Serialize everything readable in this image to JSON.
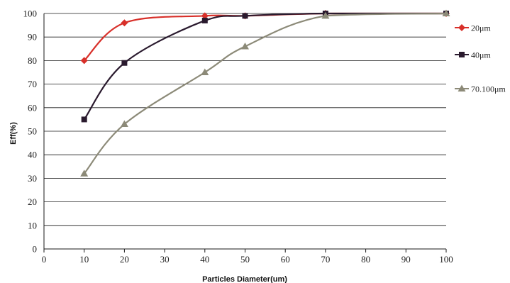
{
  "chart_data": {
    "type": "line",
    "title": "",
    "xlabel": "Particles Diameter(um)",
    "ylabel": "Eff(%)",
    "xlim": [
      0,
      100
    ],
    "ylim": [
      0,
      100
    ],
    "xticks": [
      0,
      10,
      20,
      30,
      40,
      50,
      60,
      70,
      80,
      90,
      100
    ],
    "yticks": [
      0,
      10,
      20,
      30,
      40,
      50,
      60,
      70,
      80,
      90,
      100
    ],
    "grid": "horizontal",
    "legend_position": "right",
    "series": [
      {
        "name": "20μm",
        "color": "#d8302a",
        "marker": "diamond",
        "points": [
          [
            10,
            80
          ],
          [
            20,
            96
          ],
          [
            40,
            99
          ],
          [
            50,
            99
          ],
          [
            70,
            100
          ],
          [
            100,
            100
          ]
        ]
      },
      {
        "name": "40μm",
        "color": "#2a1a2e",
        "marker": "square",
        "points": [
          [
            10,
            55
          ],
          [
            20,
            79
          ],
          [
            40,
            97
          ],
          [
            50,
            99
          ],
          [
            70,
            100
          ],
          [
            100,
            100
          ]
        ]
      },
      {
        "name": "70.100μm",
        "color": "#8c8a78",
        "marker": "triangle",
        "points": [
          [
            10,
            32
          ],
          [
            20,
            53
          ],
          [
            40,
            75
          ],
          [
            50,
            86
          ],
          [
            70,
            99
          ],
          [
            100,
            100
          ]
        ]
      }
    ]
  }
}
